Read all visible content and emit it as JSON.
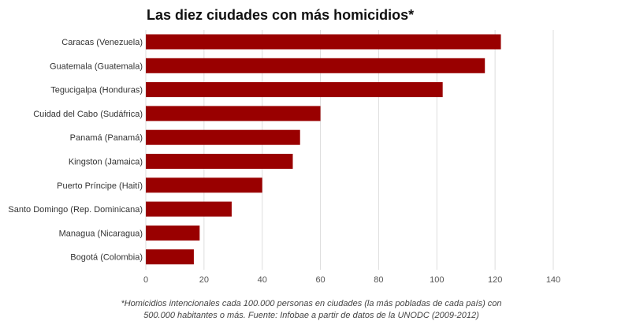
{
  "chart_data": {
    "type": "bar",
    "orientation": "horizontal",
    "title": "Las diez ciudades con más homicidios*",
    "categories": [
      "Caracas (Venezuela)",
      "Guatemala (Guatemala)",
      "Tegucigalpa (Honduras)",
      "Cuidad del Cabo (Sudáfrica)",
      "Panamá (Panamá)",
      "Kingston (Jamaica)",
      "Puerto Príncipe (Haití)",
      "Santo Domingo (Rep. Dominicana)",
      "Managua (Nicaragua)",
      "Bogotá (Colombia)"
    ],
    "values": [
      122,
      116.5,
      102,
      60,
      53,
      50.5,
      40,
      29.5,
      18.5,
      16.5
    ],
    "xlim": [
      0,
      140
    ],
    "xticks": [
      0,
      20,
      40,
      60,
      80,
      100,
      120,
      140
    ],
    "grid": true,
    "bar_color": "#990000",
    "grid_color": "#dddddd"
  },
  "note": "*Homicidios intencionales cada 100.000 personas en ciudades (la más pobladas de cada país) con 500.000 habitantes o más. Fuente: Infobae a partir de datos de la UNODC (2009-2012)"
}
